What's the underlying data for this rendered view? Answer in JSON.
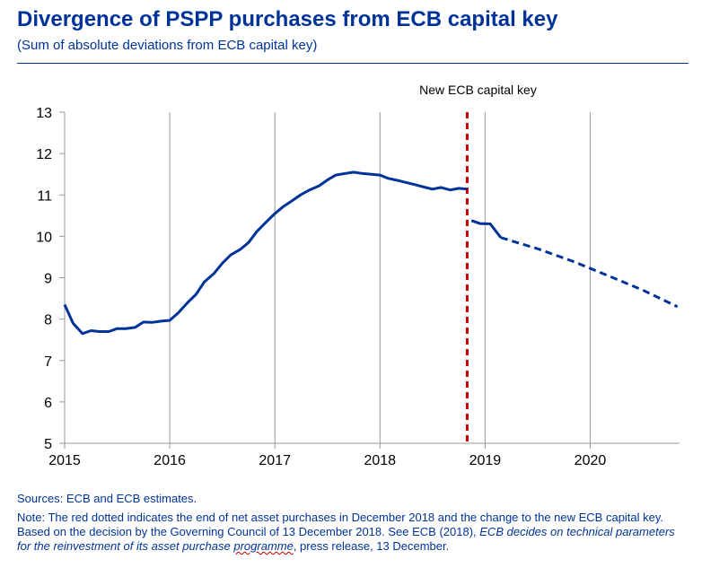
{
  "header": {
    "title": "Divergence of PSPP purchases from ECB capital key",
    "subtitle": "(Sum of absolute deviations from ECB capital key)"
  },
  "colors": {
    "brand": "#003399",
    "series": "#003399",
    "marker_line": "#cc0000",
    "grid": "#999999"
  },
  "chart_data": {
    "type": "line",
    "xlim": [
      2015.0,
      2020.85
    ],
    "ylim": [
      5,
      13
    ],
    "x_ticks": [
      2015,
      2016,
      2017,
      2018,
      2019,
      2020
    ],
    "y_ticks": [
      5,
      6,
      7,
      8,
      9,
      10,
      11,
      12,
      13
    ],
    "grid": "vertical lines at year ticks",
    "series": [
      {
        "style": "solid",
        "points": [
          [
            2015.0,
            8.35
          ],
          [
            2015.08,
            7.9
          ],
          [
            2015.17,
            7.65
          ],
          [
            2015.25,
            7.72
          ],
          [
            2015.33,
            7.7
          ],
          [
            2015.42,
            7.7
          ],
          [
            2015.5,
            7.77
          ],
          [
            2015.58,
            7.77
          ],
          [
            2015.67,
            7.8
          ],
          [
            2015.75,
            7.93
          ],
          [
            2015.83,
            7.92
          ],
          [
            2015.92,
            7.95
          ],
          [
            2016.0,
            7.97
          ],
          [
            2016.08,
            8.15
          ],
          [
            2016.17,
            8.4
          ],
          [
            2016.25,
            8.6
          ],
          [
            2016.33,
            8.9
          ],
          [
            2016.42,
            9.1
          ],
          [
            2016.5,
            9.35
          ],
          [
            2016.58,
            9.55
          ],
          [
            2016.67,
            9.68
          ],
          [
            2016.75,
            9.85
          ],
          [
            2016.83,
            10.12
          ],
          [
            2016.92,
            10.35
          ],
          [
            2017.0,
            10.55
          ],
          [
            2017.08,
            10.72
          ],
          [
            2017.17,
            10.87
          ],
          [
            2017.25,
            11.01
          ],
          [
            2017.33,
            11.12
          ],
          [
            2017.42,
            11.22
          ],
          [
            2017.5,
            11.36
          ],
          [
            2017.58,
            11.48
          ],
          [
            2017.67,
            11.52
          ],
          [
            2017.75,
            11.55
          ],
          [
            2017.83,
            11.52
          ],
          [
            2017.92,
            11.5
          ],
          [
            2018.0,
            11.48
          ],
          [
            2018.08,
            11.4
          ],
          [
            2018.17,
            11.35
          ],
          [
            2018.25,
            11.3
          ],
          [
            2018.33,
            11.25
          ],
          [
            2018.42,
            11.19
          ],
          [
            2018.5,
            11.14
          ],
          [
            2018.58,
            11.18
          ],
          [
            2018.67,
            11.12
          ],
          [
            2018.75,
            11.16
          ],
          [
            2018.83,
            11.14
          ]
        ]
      },
      {
        "style": "solid",
        "points": [
          [
            2018.87,
            10.38
          ],
          [
            2018.95,
            10.31
          ],
          [
            2019.05,
            10.3
          ],
          [
            2019.15,
            9.97
          ]
        ]
      },
      {
        "style": "dashed",
        "points": [
          [
            2019.15,
            9.97
          ],
          [
            2019.5,
            9.7
          ],
          [
            2019.83,
            9.4
          ],
          [
            2020.17,
            9.05
          ],
          [
            2020.5,
            8.7
          ],
          [
            2020.83,
            8.3
          ]
        ]
      }
    ],
    "annotations": [
      {
        "text": "New ECB capital key",
        "x": 2018.83,
        "style": "dashed vertical line"
      }
    ]
  },
  "footer": {
    "sources": "Sources: ECB and ECB estimates.",
    "note_line1": "Note: The red dotted indicates the end of net asset purchases in December 2018 and the change to the new ECB capital key.",
    "note_line2": "Based on the decision by the Governing Council of 13 December 2018. See ECB (2018), ",
    "note_italic1": "ECB decides on technical parameters",
    "note_italic2a": "for the reinvestment of its asset purchase ",
    "note_italic2b": "programme",
    "note_tail": ", press release, 13 December."
  }
}
